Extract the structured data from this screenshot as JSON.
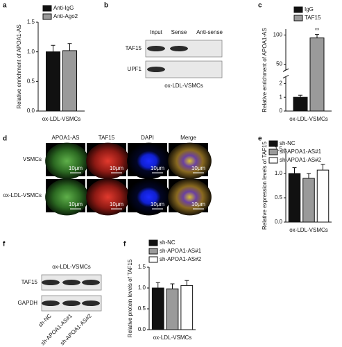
{
  "chart_data": [
    {
      "panel": "a",
      "type": "bar",
      "y_label": "Relative enrichment of APOA1-AS",
      "categories": [
        "ox-LDL-VSMCs"
      ],
      "series": [
        {
          "name": "Anti-IgG",
          "color": "#111111",
          "values": [
            1.0
          ],
          "errors": [
            0.11
          ]
        },
        {
          "name": "Anti-Ago2",
          "color": "#9a9a9a",
          "values": [
            1.02
          ],
          "errors": [
            0.12
          ]
        }
      ],
      "ylim": [
        0,
        1.5
      ],
      "yticks": [
        {
          "value": 0,
          "label": "0.0"
        },
        0.5,
        {
          "value": 1,
          "label": "1.0"
        },
        1.5
      ]
    },
    {
      "panel": "c",
      "type": "bar",
      "y_label": "Relative enrichment of APOA1-AS",
      "categories": [
        "ox-LDL-VSMCs"
      ],
      "series": [
        {
          "name": "IgG",
          "color": "#111111",
          "values": [
            1.0
          ],
          "errors": [
            0.15
          ]
        },
        {
          "name": "TAF15",
          "color": "#9a9a9a",
          "values": [
            95
          ],
          "errors": [
            6
          ]
        }
      ],
      "annotation": "**",
      "ylim": [
        0,
        110
      ],
      "ybreak": [
        2.5,
        40
      ],
      "yticks": [
        0,
        1,
        2,
        50,
        100
      ]
    },
    {
      "panel": "e",
      "type": "bar",
      "y_label": "Relative expression levels of TAF15",
      "categories": [
        "ox-LDL-VSMCs"
      ],
      "series": [
        {
          "name": "sh-NC",
          "color": "#111111",
          "values": [
            1.0
          ],
          "errors": [
            0.12
          ]
        },
        {
          "name": "sh-APOA1-AS#1",
          "color": "#9a9a9a",
          "values": [
            0.9
          ],
          "errors": [
            0.1
          ]
        },
        {
          "name": "sh-APOA1-AS#2",
          "color": "#ffffff",
          "values": [
            1.07
          ],
          "errors": [
            0.12
          ]
        }
      ],
      "ylim": [
        0,
        1.5
      ],
      "yticks": [
        {
          "value": 0,
          "label": "0.0"
        },
        0.5,
        {
          "value": 1,
          "label": "1.0"
        },
        1.5
      ]
    },
    {
      "panel": "f",
      "type": "bar",
      "y_label": "Relative protein levels of TAF15",
      "categories": [
        "ox-LDL-VSMCs"
      ],
      "series": [
        {
          "name": "sh-NC",
          "color": "#111111",
          "values": [
            1.0
          ],
          "errors": [
            0.13
          ]
        },
        {
          "name": "sh-APOA1-AS#1",
          "color": "#9a9a9a",
          "values": [
            0.98
          ],
          "errors": [
            0.12
          ]
        },
        {
          "name": "sh-APOA1-AS#2",
          "color": "#ffffff",
          "values": [
            1.06
          ],
          "errors": [
            0.12
          ]
        }
      ],
      "ylim": [
        0,
        1.5
      ],
      "yticks": [
        {
          "value": 0,
          "label": "0.0"
        },
        0.5,
        {
          "value": 1,
          "label": "1.0"
        },
        1.5
      ]
    }
  ],
  "blots": [
    {
      "panel": "b",
      "lanes": [
        "Input",
        "Sense",
        "Anti-sense"
      ],
      "proteins": [
        "TAF15",
        "UPF1"
      ],
      "caption": "ox-LDL-VSMCs"
    },
    {
      "panel": "f",
      "caption": "ox-LDL-VSMCs",
      "proteins": [
        "TAF15",
        "GAPDH"
      ],
      "lanes": [
        "sh-NC",
        "sh-APOA1-AS#1",
        "sh-APOA1-AS#2"
      ]
    }
  ],
  "micrographs": {
    "panel": "d",
    "columns": [
      "APOA1-AS",
      "TAF15",
      "DAPI",
      "Merge"
    ],
    "rows": [
      "VSMCs",
      "ox-LDL-VSMCs"
    ],
    "scale_bar": "10μm"
  }
}
